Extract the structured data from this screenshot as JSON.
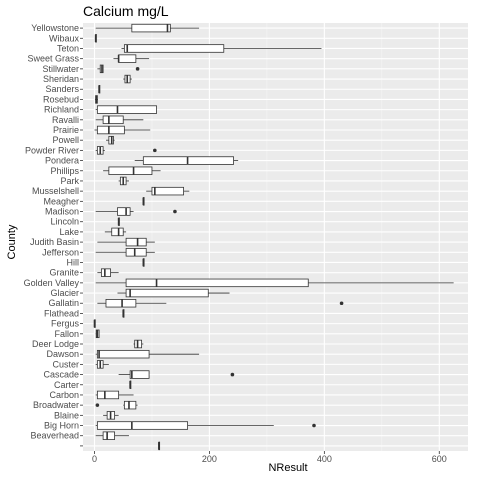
{
  "chart_data": {
    "type": "boxplot",
    "orientation": "horizontal",
    "title": "Calcium mg/L",
    "xlabel": "NResult",
    "ylabel": "County",
    "xlim": [
      -20,
      650
    ],
    "xticks": [
      0,
      200,
      400,
      600
    ],
    "grid": true,
    "legend": "none",
    "colors": {
      "panel": "#ebebeb",
      "grid_major": "#ffffff",
      "grid_minor": "#f5f5f5",
      "box_fill": "#ffffff",
      "line": "#333333",
      "tick_text": "#4d4d4d"
    },
    "categories": [
      {
        "name": "Yellowstone",
        "whislo": 2,
        "q1": 65,
        "med": 127,
        "q3": 132,
        "whishi": 182,
        "fliers": []
      },
      {
        "name": "Wibaux",
        "whislo": 2,
        "q1": 2,
        "med": 2,
        "q3": 2,
        "whishi": 2,
        "fliers": []
      },
      {
        "name": "Teton",
        "whislo": 47,
        "q1": 52,
        "med": 57,
        "q3": 225,
        "whishi": 395,
        "fliers": []
      },
      {
        "name": "Sweet Grass",
        "whislo": 33,
        "q1": 42,
        "med": 42,
        "q3": 72,
        "whishi": 95,
        "fliers": []
      },
      {
        "name": "Stillwater",
        "whislo": 5,
        "q1": 10,
        "med": 13,
        "q3": 15,
        "whishi": 15,
        "fliers": [
          75
        ]
      },
      {
        "name": "Sheridan",
        "whislo": 50,
        "q1": 53,
        "med": 57,
        "q3": 62,
        "whishi": 65,
        "fliers": []
      },
      {
        "name": "Sanders",
        "whislo": 8,
        "q1": 8,
        "med": 8,
        "q3": 8,
        "whishi": 8,
        "fliers": []
      },
      {
        "name": "Rosebud",
        "whislo": 1,
        "q1": 2,
        "med": 3,
        "q3": 5,
        "whishi": 6,
        "fliers": []
      },
      {
        "name": "Richland",
        "whislo": 2,
        "q1": 5,
        "med": 40,
        "q3": 108,
        "whishi": 108,
        "fliers": []
      },
      {
        "name": "Ravalli",
        "whislo": 2,
        "q1": 15,
        "med": 25,
        "q3": 50,
        "whishi": 85,
        "fliers": []
      },
      {
        "name": "Prairie",
        "whislo": 0,
        "q1": 5,
        "med": 25,
        "q3": 52,
        "whishi": 97,
        "fliers": []
      },
      {
        "name": "Powell",
        "whislo": 20,
        "q1": 25,
        "med": 30,
        "q3": 33,
        "whishi": 35,
        "fliers": []
      },
      {
        "name": "Powder River",
        "whislo": 2,
        "q1": 5,
        "med": 10,
        "q3": 15,
        "whishi": 18,
        "fliers": [
          105
        ]
      },
      {
        "name": "Pondera",
        "whislo": 70,
        "q1": 85,
        "med": 162,
        "q3": 242,
        "whishi": 250,
        "fliers": []
      },
      {
        "name": "Phillips",
        "whislo": 15,
        "q1": 25,
        "med": 68,
        "q3": 100,
        "whishi": 115,
        "fliers": []
      },
      {
        "name": "Park",
        "whislo": 42,
        "q1": 45,
        "med": 50,
        "q3": 55,
        "whishi": 60,
        "fliers": []
      },
      {
        "name": "Musselshell",
        "whislo": 90,
        "q1": 100,
        "med": 105,
        "q3": 155,
        "whishi": 165,
        "fliers": []
      },
      {
        "name": "Meagher",
        "whislo": 85,
        "q1": 85,
        "med": 85,
        "q3": 85,
        "whishi": 85,
        "fliers": []
      },
      {
        "name": "Madison",
        "whislo": 2,
        "q1": 40,
        "med": 55,
        "q3": 62,
        "whishi": 68,
        "fliers": [
          140
        ]
      },
      {
        "name": "Lincoln",
        "whislo": 42,
        "q1": 42,
        "med": 42,
        "q3": 42,
        "whishi": 42,
        "fliers": []
      },
      {
        "name": "Lake",
        "whislo": 18,
        "q1": 30,
        "med": 42,
        "q3": 50,
        "whishi": 55,
        "fliers": []
      },
      {
        "name": "Judith Basin",
        "whislo": 5,
        "q1": 55,
        "med": 75,
        "q3": 90,
        "whishi": 105,
        "fliers": []
      },
      {
        "name": "Jefferson",
        "whislo": 2,
        "q1": 55,
        "med": 70,
        "q3": 90,
        "whishi": 105,
        "fliers": []
      },
      {
        "name": "Hill",
        "whislo": 85,
        "q1": 85,
        "med": 85,
        "q3": 85,
        "whishi": 85,
        "fliers": []
      },
      {
        "name": "Granite",
        "whislo": 5,
        "q1": 12,
        "med": 18,
        "q3": 28,
        "whishi": 42,
        "fliers": []
      },
      {
        "name": "Golden Valley",
        "whislo": 2,
        "q1": 55,
        "med": 108,
        "q3": 372,
        "whishi": 625,
        "fliers": []
      },
      {
        "name": "Glacier",
        "whislo": 40,
        "q1": 55,
        "med": 62,
        "q3": 198,
        "whishi": 235,
        "fliers": []
      },
      {
        "name": "Gallatin",
        "whislo": 5,
        "q1": 20,
        "med": 48,
        "q3": 72,
        "whishi": 125,
        "fliers": [
          430
        ]
      },
      {
        "name": "Flathead",
        "whislo": 50,
        "q1": 50,
        "med": 50,
        "q3": 50,
        "whishi": 50,
        "fliers": []
      },
      {
        "name": "Fergus",
        "whislo": 0,
        "q1": 0,
        "med": 0,
        "q3": 0,
        "whishi": 0,
        "fliers": []
      },
      {
        "name": "Fallon",
        "whislo": 2,
        "q1": 3,
        "med": 5,
        "q3": 8,
        "whishi": 8,
        "fliers": []
      },
      {
        "name": "Deer Lodge",
        "whislo": 68,
        "q1": 70,
        "med": 75,
        "q3": 82,
        "whishi": 85,
        "fliers": []
      },
      {
        "name": "Dawson",
        "whislo": 2,
        "q1": 5,
        "med": 8,
        "q3": 95,
        "whishi": 182,
        "fliers": []
      },
      {
        "name": "Custer",
        "whislo": 2,
        "q1": 5,
        "med": 10,
        "q3": 15,
        "whishi": 25,
        "fliers": []
      },
      {
        "name": "Cascade",
        "whislo": 42,
        "q1": 62,
        "med": 65,
        "q3": 95,
        "whishi": 95,
        "fliers": [
          240
        ]
      },
      {
        "name": "Carter",
        "whislo": 62,
        "q1": 62,
        "med": 62,
        "q3": 62,
        "whishi": 62,
        "fliers": []
      },
      {
        "name": "Carbon",
        "whislo": 2,
        "q1": 5,
        "med": 18,
        "q3": 42,
        "whishi": 68,
        "fliers": []
      },
      {
        "name": "Broadwater",
        "whislo": 50,
        "q1": 52,
        "med": 60,
        "q3": 72,
        "whishi": 75,
        "fliers": [
          5
        ]
      },
      {
        "name": "Blaine",
        "whislo": 15,
        "q1": 22,
        "med": 28,
        "q3": 35,
        "whishi": 42,
        "fliers": []
      },
      {
        "name": "Big Horn",
        "whislo": 2,
        "q1": 5,
        "med": 65,
        "q3": 162,
        "whishi": 312,
        "fliers": [
          382
        ]
      },
      {
        "name": "Beaverhead",
        "whislo": 2,
        "q1": 15,
        "med": 22,
        "q3": 35,
        "whishi": 60,
        "fliers": []
      },
      {
        "name": "",
        "whislo": 112,
        "q1": 112,
        "med": 112,
        "q3": 112,
        "whishi": 112,
        "fliers": []
      }
    ]
  }
}
